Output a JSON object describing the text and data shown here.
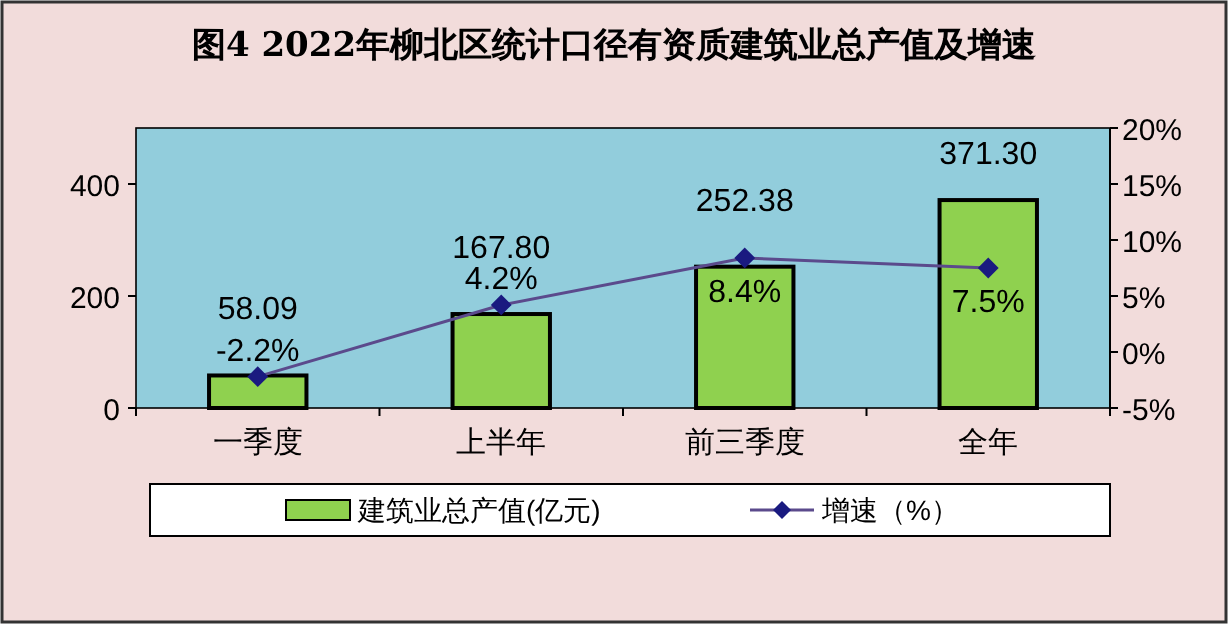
{
  "chart_data": {
    "type": "bar",
    "title": "图4  2022年柳北区统计口径有资质建筑业总产值及增速",
    "categories": [
      "一季度",
      "上半年",
      "前三季度",
      "全年"
    ],
    "series": [
      {
        "name": "建筑业总产值(亿元)",
        "color": "#8fd14f",
        "values": [
          58.09,
          167.8,
          252.38,
          371.3
        ],
        "value_labels": [
          "58.09",
          "167.80",
          "252.38",
          "371.30"
        ]
      },
      {
        "name": "增速（%）",
        "type": "line",
        "axis": "y2",
        "color": "#5b4a8c",
        "marker": "diamond",
        "values": [
          -2.2,
          4.2,
          8.4,
          7.5
        ],
        "value_labels": [
          "-2.2%",
          "4.2%",
          "8.4%",
          "7.5%"
        ]
      }
    ],
    "ylim": [
      0,
      500
    ],
    "yticks": [
      0,
      200,
      400
    ],
    "y2lim": [
      -5,
      20
    ],
    "y2ticks": [
      {
        "value": -5,
        "label": "-5%"
      },
      {
        "value": 0,
        "label": "0%"
      },
      {
        "value": 5,
        "label": "5%"
      },
      {
        "value": 10,
        "label": "10%"
      },
      {
        "value": 15,
        "label": "15%"
      },
      {
        "value": 20,
        "label": "20%"
      }
    ],
    "legend": "bottom"
  }
}
